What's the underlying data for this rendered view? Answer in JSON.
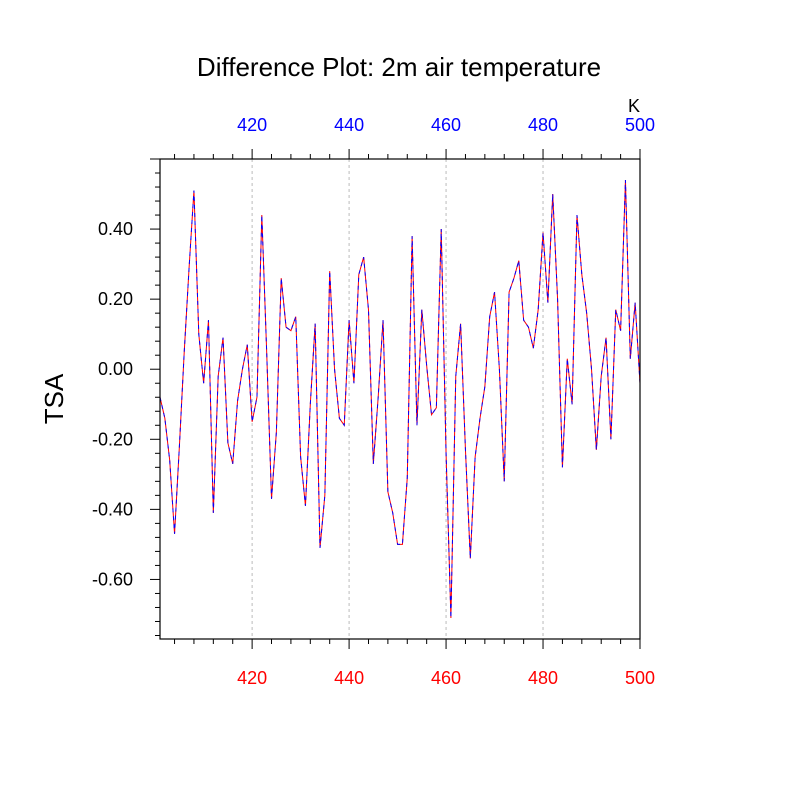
{
  "chart_data": {
    "type": "line",
    "title": "Difference Plot: 2m air temperature",
    "ylabel": "TSA",
    "top_axis_unit": "K",
    "xlim": [
      401,
      500
    ],
    "ylim": [
      -0.77,
      0.6
    ],
    "x_ticks": [
      420,
      440,
      460,
      480,
      500
    ],
    "y_ticks": [
      0.4,
      0.2,
      0.0,
      -0.2,
      -0.4,
      -0.6
    ],
    "y_tick_labels": [
      "0.40",
      "0.20",
      "0.00",
      "-0.20",
      "-0.40",
      "-0.60"
    ],
    "x_tick_labels": [
      "420",
      "440",
      "460",
      "480",
      "500"
    ],
    "grid": "vertical-dashed",
    "colors": {
      "top_axis_labels": "#0000ff",
      "bottom_axis_labels": "#ff0000",
      "line_primary": "#ff0000",
      "line_secondary": "#0000ff",
      "grid": "#bbbbbb",
      "axis": "#000000"
    },
    "series": [
      {
        "x": [
          401,
          402,
          403,
          404,
          405,
          406,
          407,
          408,
          409,
          410,
          411,
          412,
          413,
          414,
          415,
          416,
          417,
          418,
          419,
          420,
          421,
          422,
          423,
          424,
          425,
          426,
          427,
          428,
          429,
          430,
          431,
          432,
          433,
          434,
          435,
          436,
          437,
          438,
          439,
          440,
          441,
          442,
          443,
          444,
          445,
          446,
          447,
          448,
          449,
          450,
          451,
          452,
          453,
          454,
          455,
          456,
          457,
          458,
          459,
          460,
          461,
          462,
          463,
          464,
          465,
          466,
          467,
          468,
          469,
          470,
          471,
          472,
          473,
          474,
          475,
          476,
          477,
          478,
          479,
          480,
          481,
          482,
          483,
          484,
          485,
          486,
          487,
          488,
          489,
          490,
          491,
          492,
          493,
          494,
          495,
          496,
          497,
          498,
          499,
          500
        ],
        "values": [
          -0.08,
          -0.14,
          -0.26,
          -0.47,
          -0.22,
          0.05,
          0.29,
          0.51,
          0.1,
          -0.04,
          0.14,
          -0.41,
          -0.02,
          0.09,
          -0.21,
          -0.27,
          -0.09,
          0.0,
          0.07,
          -0.15,
          -0.08,
          0.44,
          0.05,
          -0.37,
          -0.18,
          0.26,
          0.12,
          0.11,
          0.15,
          -0.25,
          -0.39,
          -0.1,
          0.13,
          -0.51,
          -0.36,
          0.28,
          0.0,
          -0.14,
          -0.16,
          0.14,
          -0.04,
          0.27,
          0.32,
          0.17,
          -0.27,
          -0.08,
          0.14,
          -0.35,
          -0.41,
          -0.5,
          -0.5,
          -0.31,
          0.38,
          -0.16,
          0.17,
          0.01,
          -0.13,
          -0.11,
          0.4,
          -0.24,
          -0.71,
          -0.02,
          0.13,
          -0.23,
          -0.54,
          -0.25,
          -0.14,
          -0.05,
          0.15,
          0.22,
          0.0,
          -0.32,
          0.22,
          0.26,
          0.31,
          0.14,
          0.12,
          0.06,
          0.17,
          0.39,
          0.19,
          0.5,
          0.2,
          -0.28,
          0.03,
          -0.1,
          0.44,
          0.27,
          0.16,
          0.0,
          -0.23,
          -0.02,
          0.09,
          -0.2,
          0.17,
          0.11,
          0.54,
          0.03,
          0.19,
          -0.04
        ]
      }
    ]
  }
}
